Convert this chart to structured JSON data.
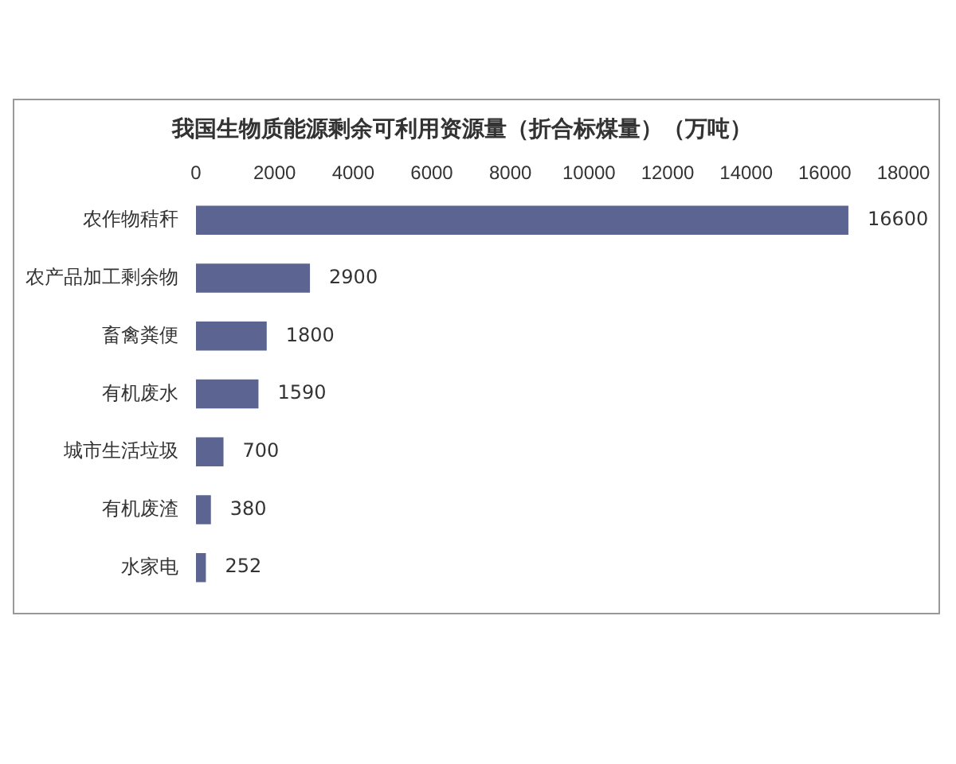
{
  "chart_data": {
    "type": "bar",
    "orientation": "horizontal",
    "title": "我国生物质能源剩余可利用资源量（折合标煤量）（万吨）",
    "categories": [
      "农作物秸秆",
      "农产品加工剩余物",
      "畜禽粪便",
      "有机废水",
      "城市生活垃圾",
      "有机废渣",
      "水家电"
    ],
    "values": [
      16600,
      2900,
      1800,
      1590,
      700,
      380,
      252
    ],
    "color": "#5c6591",
    "xlim": [
      0,
      18000
    ],
    "xticks": [
      0,
      2000,
      4000,
      6000,
      8000,
      10000,
      12000,
      14000,
      16000,
      18000
    ],
    "grid": false,
    "legend": false,
    "data_labels": true
  }
}
